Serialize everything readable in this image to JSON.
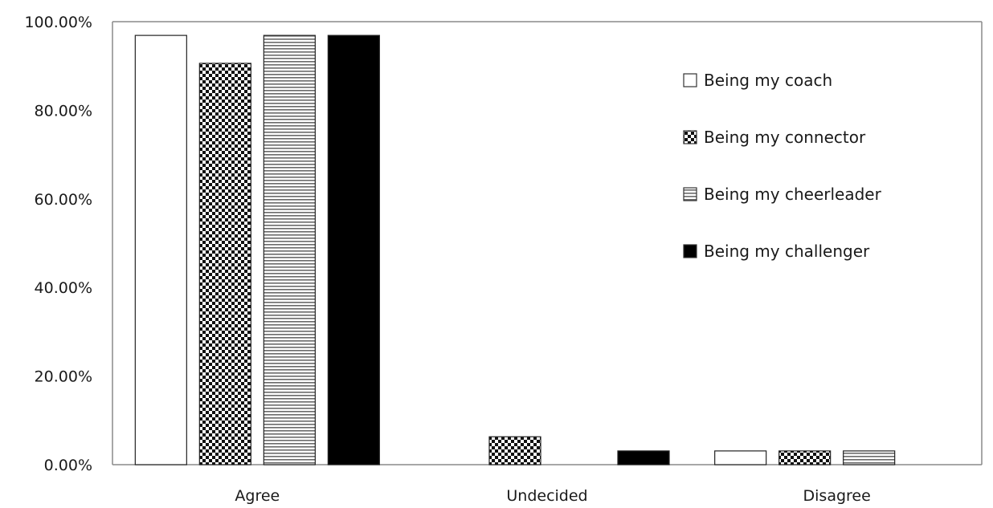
{
  "chart_data": {
    "type": "bar",
    "title": "",
    "xlabel": "",
    "ylabel": "",
    "ylim": [
      0,
      100
    ],
    "y_ticks": [
      "0.00%",
      "20.00%",
      "40.00%",
      "60.00%",
      "80.00%",
      "100.00%"
    ],
    "y_tick_values": [
      0,
      20,
      40,
      60,
      80,
      100
    ],
    "categories": [
      "Agree",
      "Undecided",
      "Disagree"
    ],
    "series": [
      {
        "name": "Being my coach",
        "values": [
          96.9,
          0,
          3.1
        ],
        "pattern": "white",
        "color": "#ffffff"
      },
      {
        "name": "Being my connector",
        "values": [
          90.6,
          6.3,
          3.1
        ],
        "pattern": "checker",
        "color": "#000000"
      },
      {
        "name": "Being my cheerleader",
        "values": [
          96.9,
          0,
          3.1
        ],
        "pattern": "hlines",
        "color": "#555555"
      },
      {
        "name": "Being my challenger",
        "values": [
          96.9,
          3.1,
          0
        ],
        "pattern": "solid",
        "color": "#000000"
      }
    ],
    "legend_position": "right",
    "grid": false
  }
}
